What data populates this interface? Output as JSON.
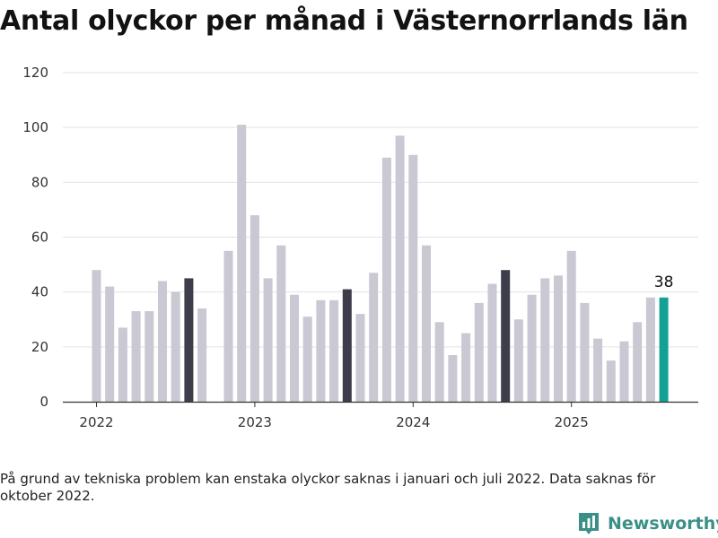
{
  "title": "Antal olyckor per månad i Västernorrlands län",
  "note": "På grund av tekniska problem kan enstaka olyckor saknas i januari och juli 2022. Data saknas för oktober 2022.",
  "brand": {
    "name": "Newsworthy",
    "icon": "bar-chart-logo-icon",
    "color": "#3b8f86"
  },
  "chart_data": {
    "type": "bar",
    "title": "Antal olyckor per månad i Västernorrlands län",
    "xlabel": "",
    "ylabel": "",
    "ylim": [
      0,
      120
    ],
    "yticks": [
      0,
      20,
      40,
      60,
      80,
      100,
      120
    ],
    "ytick_labels": [
      "0",
      "20",
      "40",
      "60",
      "80",
      "100",
      "120"
    ],
    "xtick_labels": [
      {
        "label": "2022",
        "month_index": 0
      },
      {
        "label": "2023",
        "month_index": 12
      },
      {
        "label": "2024",
        "month_index": 24
      },
      {
        "label": "2025",
        "month_index": 36
      }
    ],
    "grid": true,
    "colors": {
      "default": "#c9c8d3",
      "august": "#3e3d4b",
      "latest": "#13a195"
    },
    "months": [
      "2022-01",
      "2022-02",
      "2022-03",
      "2022-04",
      "2022-05",
      "2022-06",
      "2022-07",
      "2022-08",
      "2022-09",
      "2022-10",
      "2022-11",
      "2022-12",
      "2023-01",
      "2023-02",
      "2023-03",
      "2023-04",
      "2023-05",
      "2023-06",
      "2023-07",
      "2023-08",
      "2023-09",
      "2023-10",
      "2023-11",
      "2023-12",
      "2024-01",
      "2024-02",
      "2024-03",
      "2024-04",
      "2024-05",
      "2024-06",
      "2024-07",
      "2024-08",
      "2024-09",
      "2024-10",
      "2024-11",
      "2024-12",
      "2025-01",
      "2025-02",
      "2025-03",
      "2025-04",
      "2025-05",
      "2025-06",
      "2025-07",
      "2025-08"
    ],
    "values": [
      48,
      42,
      27,
      33,
      33,
      44,
      40,
      45,
      34,
      null,
      55,
      101,
      68,
      45,
      57,
      39,
      31,
      37,
      37,
      41,
      32,
      47,
      89,
      97,
      90,
      57,
      29,
      17,
      25,
      36,
      43,
      48,
      30,
      39,
      45,
      46,
      55,
      36,
      23,
      15,
      22,
      29,
      38,
      38
    ],
    "highlight": [
      "default",
      "default",
      "default",
      "default",
      "default",
      "default",
      "default",
      "august",
      "default",
      "default",
      "default",
      "default",
      "default",
      "default",
      "default",
      "default",
      "default",
      "default",
      "default",
      "august",
      "default",
      "default",
      "default",
      "default",
      "default",
      "default",
      "default",
      "default",
      "default",
      "default",
      "default",
      "august",
      "default",
      "default",
      "default",
      "default",
      "default",
      "default",
      "default",
      "default",
      "default",
      "default",
      "default",
      "latest"
    ],
    "annotation": {
      "month_index": 43,
      "text": "38"
    }
  }
}
